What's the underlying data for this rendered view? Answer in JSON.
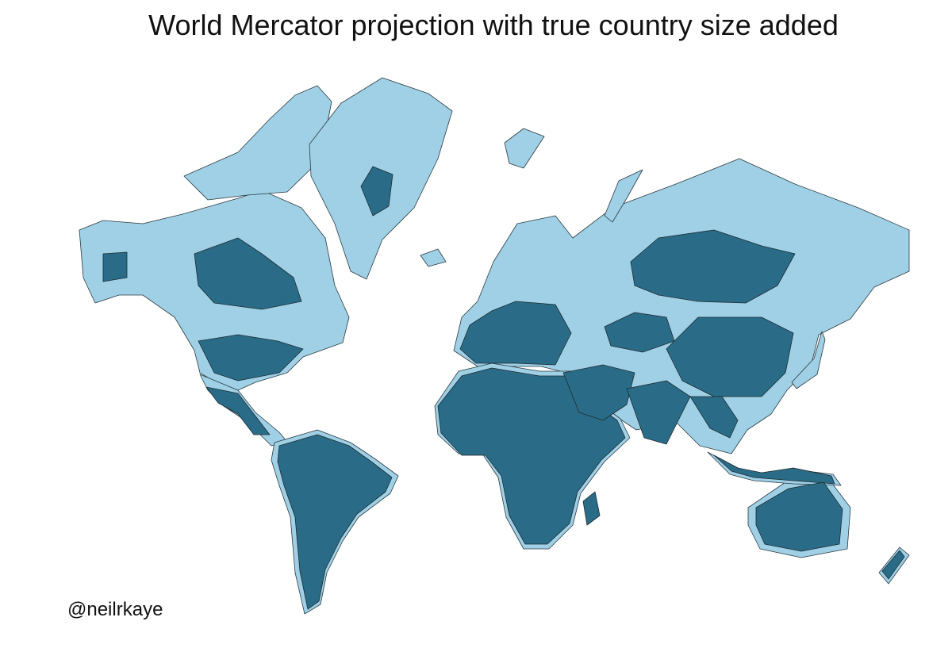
{
  "title": "World Mercator projection with true country size added",
  "credit": "@neilrkaye"
}
